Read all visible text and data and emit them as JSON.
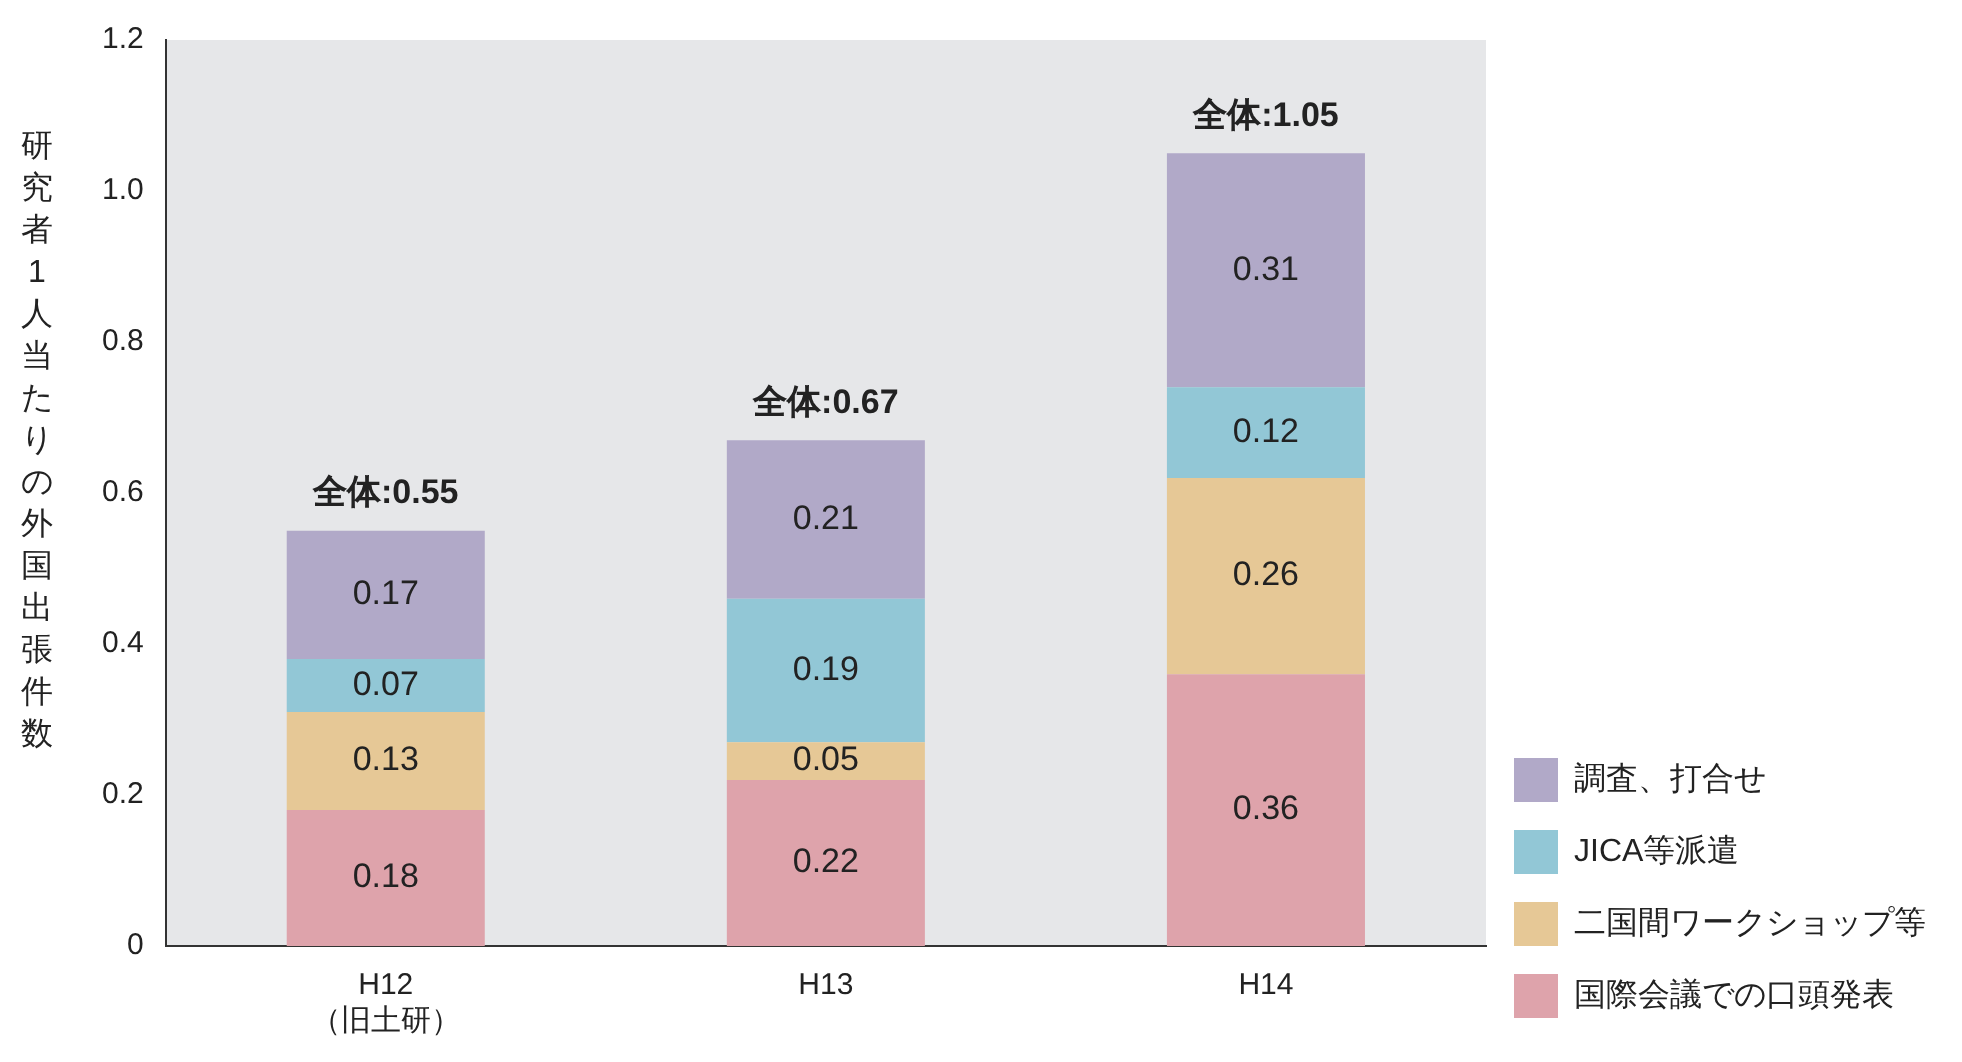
{
  "chart_data": {
    "type": "bar",
    "ylabel": "研究者1人当たりの外国出張件数",
    "categories": [
      "H12（旧土研）",
      "H13",
      "H14"
    ],
    "series": [
      {
        "name": "国際会議での口頭発表",
        "color": "#dea3ab",
        "values": [
          0.18,
          0.22,
          0.36
        ]
      },
      {
        "name": "二国間ワークショップ等",
        "color": "#e6c896",
        "values": [
          0.13,
          0.05,
          0.26
        ]
      },
      {
        "name": "JICA等派遣",
        "color": "#92c7d6",
        "values": [
          0.07,
          0.19,
          0.12
        ]
      },
      {
        "name": "調査、打合せ",
        "color": "#b1a9c8",
        "values": [
          0.17,
          0.21,
          0.31
        ]
      }
    ],
    "stacked": true,
    "data_labels": true,
    "totals": [
      "全体:0.55",
      "全体:0.67",
      "全体:1.05"
    ],
    "ylim": [
      0,
      1.2
    ],
    "yticks": [
      0,
      0.2,
      0.4,
      0.6,
      0.8,
      {
        "value": 1,
        "label": "1.0"
      },
      1.2
    ],
    "grid": false,
    "legend": "bottom right"
  }
}
